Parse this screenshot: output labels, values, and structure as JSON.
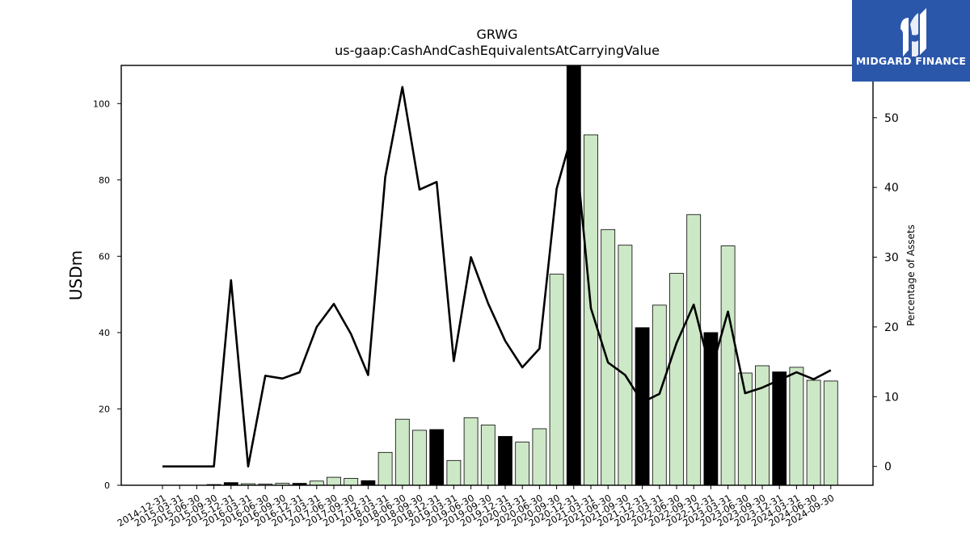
{
  "brand": {
    "name": "MIDGARD FINANCE",
    "bg_color": "#2b57aa"
  },
  "chart_data": {
    "type": "bar",
    "title": "GRWG",
    "subtitle": "us-gaap:CashAndCashEquivalentsAtCarryingValue",
    "ylabel": "USDm",
    "y2label": "Percentage of Assets",
    "ylim": [
      0,
      110
    ],
    "y2lim": [
      -2.7,
      57.5
    ],
    "yticks": [
      0,
      20,
      40,
      60,
      80,
      100
    ],
    "y2ticks": [
      0,
      10,
      20,
      30,
      40,
      50
    ],
    "grid": false,
    "bar_color_default": "#cde8c6",
    "bar_color_highlight": "#000000",
    "line_color": "#000000",
    "categories": [
      "2014-12-31",
      "2015-03-31",
      "2015-06-30",
      "2015-09-30",
      "2015-12-31",
      "2016-03-31",
      "2016-06-30",
      "2016-09-30",
      "2016-12-31",
      "2017-03-31",
      "2017-06-30",
      "2017-09-30",
      "2017-12-31",
      "2018-03-31",
      "2018-06-30",
      "2018-09-30",
      "2018-12-31",
      "2019-03-31",
      "2019-06-30",
      "2019-09-30",
      "2019-12-31",
      "2020-03-31",
      "2020-06-30",
      "2020-09-30",
      "2020-12-31",
      "2021-03-31",
      "2021-06-30",
      "2021-09-30",
      "2021-12-31",
      "2022-03-31",
      "2022-06-30",
      "2022-09-30",
      "2022-12-31",
      "2023-03-31",
      "2023-06-30",
      "2023-09-30",
      "2023-12-31",
      "2024-03-31",
      "2024-06-30",
      "2024-09-30"
    ],
    "series": [
      {
        "type": "bar",
        "values": [
          0.0,
          0.0,
          0.0,
          0.2,
          0.7,
          0.4,
          0.3,
          0.5,
          0.5,
          1.1,
          2.1,
          1.8,
          1.2,
          8.6,
          17.3,
          14.4,
          14.6,
          6.5,
          17.7,
          15.8,
          12.8,
          11.3,
          14.8,
          55.3,
          110.0,
          91.8,
          67.0,
          62.9,
          41.3,
          47.2,
          55.5,
          70.9,
          40.0,
          62.7,
          29.4,
          31.3,
          29.7,
          30.9,
          27.5,
          27.3
        ],
        "highlight": [
          false,
          false,
          false,
          false,
          true,
          false,
          false,
          false,
          true,
          false,
          false,
          false,
          true,
          false,
          false,
          false,
          true,
          false,
          false,
          false,
          true,
          false,
          false,
          false,
          true,
          false,
          false,
          false,
          true,
          false,
          false,
          false,
          true,
          false,
          false,
          false,
          true,
          false,
          false,
          false
        ]
      },
      {
        "type": "line",
        "axis": "right",
        "values": [
          0.0,
          0.0,
          0.0,
          0.0,
          26.7,
          0.0,
          13.0,
          12.6,
          13.5,
          20.0,
          23.3,
          19.0,
          13.1,
          41.5,
          54.4,
          39.7,
          40.8,
          15.1,
          30.0,
          23.4,
          18.0,
          14.2,
          16.9,
          39.8,
          48.5,
          22.7,
          14.9,
          13.1,
          9.2,
          10.4,
          17.7,
          23.2,
          13.5,
          22.2,
          10.5,
          11.3,
          12.4,
          13.5,
          12.5,
          13.8
        ]
      }
    ]
  }
}
